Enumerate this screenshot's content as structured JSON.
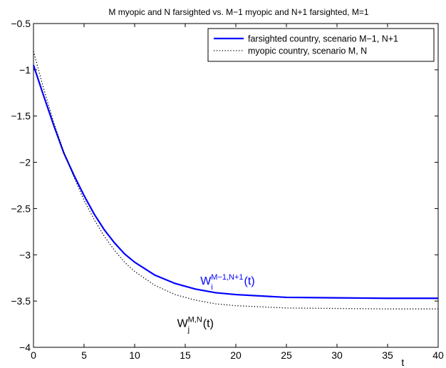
{
  "chart_data": {
    "type": "line",
    "title": "M myopic and N farsighted vs. M−1 myopic and N+1 farsighted, M=1",
    "xlabel": "t",
    "ylabel": "",
    "xlim": [
      0,
      40
    ],
    "ylim": [
      -4,
      -0.5
    ],
    "xticks": [
      0,
      5,
      10,
      15,
      20,
      25,
      30,
      35,
      40
    ],
    "yticks": [
      -4,
      -3.5,
      -3,
      -2.5,
      -2,
      -1.5,
      -1,
      -0.5
    ],
    "xtick_labels": [
      "0",
      "5",
      "10",
      "15",
      "20",
      "25",
      "30",
      "35",
      "40"
    ],
    "ytick_labels": [
      "−4",
      "−3.5",
      "−3",
      "−2.5",
      "−2",
      "−1.5",
      "−1",
      "−0.5"
    ],
    "grid": false,
    "legend_position": "top-right",
    "series": [
      {
        "name": "farsighted country, scenario M−1, N+1",
        "color": "#0000ff",
        "style": "solid",
        "x": [
          0,
          1,
          2,
          3,
          4,
          5,
          6,
          7,
          8,
          9,
          10,
          12,
          14,
          16,
          18,
          20,
          25,
          30,
          35,
          40
        ],
        "y": [
          -0.95,
          -1.28,
          -1.6,
          -1.9,
          -2.14,
          -2.36,
          -2.56,
          -2.73,
          -2.87,
          -2.99,
          -3.08,
          -3.22,
          -3.31,
          -3.37,
          -3.41,
          -3.43,
          -3.46,
          -3.465,
          -3.47,
          -3.47
        ]
      },
      {
        "name": "myopic country, scenario M, N",
        "color": "#000000",
        "style": "dotted",
        "x": [
          0,
          1,
          2,
          3,
          4,
          5,
          6,
          7,
          8,
          9,
          10,
          12,
          14,
          16,
          18,
          20,
          25,
          30,
          35,
          40
        ],
        "y": [
          -0.8,
          -1.2,
          -1.57,
          -1.89,
          -2.16,
          -2.41,
          -2.62,
          -2.8,
          -2.95,
          -3.08,
          -3.18,
          -3.33,
          -3.43,
          -3.49,
          -3.53,
          -3.55,
          -3.575,
          -3.58,
          -3.585,
          -3.585
        ]
      }
    ],
    "annotations": [
      {
        "base": "W",
        "sub": "i",
        "sup": "M−1,N+1",
        "suffix": "(t)",
        "x": 16.5,
        "y": -3.32,
        "color": "#0000ff"
      },
      {
        "base": "W",
        "sub": "j",
        "sup": "M,N",
        "suffix": "(t)",
        "x": 14.2,
        "y": -3.78,
        "color": "#000000"
      }
    ]
  }
}
